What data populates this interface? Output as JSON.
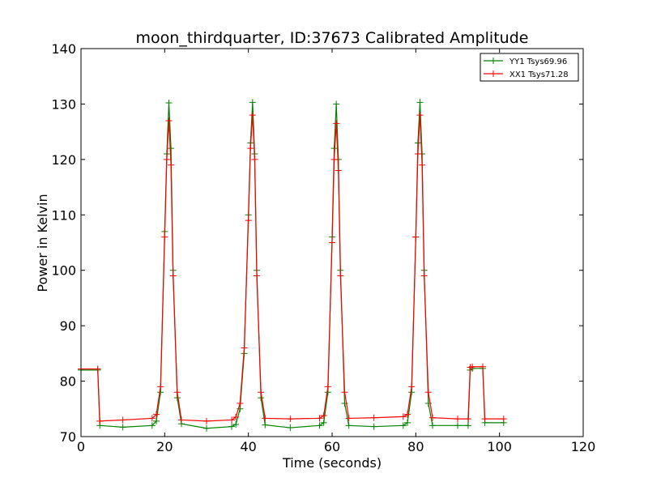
{
  "chart_data": {
    "type": "line",
    "title": "moon_thirdquarter, ID:37673 Calibrated Amplitude",
    "xlabel": "Time (seconds)",
    "ylabel": "Power in Kelvin",
    "xlim": [
      0,
      120
    ],
    "ylim": [
      70,
      140
    ],
    "xticks": [
      0,
      20,
      40,
      60,
      80,
      100,
      120
    ],
    "yticks": [
      70,
      80,
      90,
      100,
      110,
      120,
      130,
      140
    ],
    "grid": false,
    "legend_position": "top-right",
    "marker": "+",
    "series": [
      {
        "name": "YY1 Tsys69.96",
        "color": "#008000",
        "x": [
          0,
          4,
          4.5,
          10,
          17,
          18,
          19,
          20,
          20.5,
          21,
          21.5,
          22,
          23,
          24,
          30,
          36,
          37,
          38,
          39,
          40,
          40.5,
          41,
          41.5,
          42,
          43,
          44,
          50,
          57,
          58,
          59,
          60,
          60.5,
          61,
          61.5,
          62,
          63,
          64,
          70,
          77,
          78,
          79,
          80,
          80.5,
          81,
          81.5,
          82,
          83,
          84,
          90,
          92.5,
          93,
          93.5,
          96,
          96.5,
          101
        ],
        "y": [
          82,
          82,
          72,
          71.7,
          72,
          72.8,
          78,
          107,
          121,
          130.2,
          122,
          100,
          77,
          72.3,
          71.5,
          71.8,
          72.2,
          75,
          85,
          110,
          123,
          130.3,
          121,
          100,
          77,
          72.1,
          71.6,
          72,
          72.5,
          78,
          106,
          122,
          130,
          120,
          100,
          76,
          72,
          71.8,
          72,
          72.5,
          78,
          106,
          123,
          130.3,
          121,
          100,
          76,
          72,
          72,
          72,
          82,
          82.3,
          82.3,
          72.5,
          72.5
        ]
      },
      {
        "name": "XX1 Tsys71.28",
        "color": "#ff0000",
        "x": [
          0,
          4,
          4.5,
          10,
          17,
          18,
          19,
          20,
          20.5,
          21,
          21.5,
          22,
          23,
          24,
          30,
          36,
          37,
          38,
          39,
          40,
          40.5,
          41,
          41.5,
          42,
          43,
          44,
          50,
          57,
          58,
          59,
          60,
          60.5,
          61,
          61.5,
          62,
          63,
          64,
          70,
          77,
          78,
          79,
          80,
          80.5,
          81,
          81.5,
          82,
          83,
          84,
          90,
          92.5,
          93,
          93.5,
          96,
          96.5,
          101
        ],
        "y": [
          82.2,
          82.2,
          72.8,
          73,
          73.3,
          74,
          79,
          106,
          120,
          127,
          119,
          99,
          78,
          73,
          72.8,
          73,
          73.5,
          76,
          86,
          109,
          122,
          128,
          120,
          99,
          78,
          73.3,
          73.2,
          73.3,
          73.8,
          79,
          105,
          120,
          126.5,
          118,
          99,
          78,
          73.3,
          73.4,
          73.6,
          74,
          79,
          106,
          121,
          128,
          119,
          99,
          78,
          73.4,
          73.2,
          73.2,
          82.5,
          82.6,
          82.6,
          73.2,
          73.2
        ]
      }
    ]
  }
}
